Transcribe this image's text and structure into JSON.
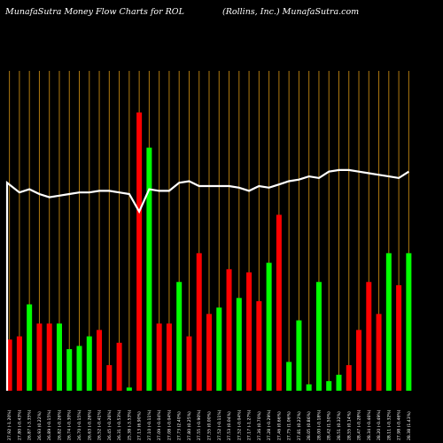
{
  "header": {
    "left_title": "MunafaSutra  Money Flow  Charts for ROL",
    "right_title": "(Rollins,  Inc.) MunafaSutra.com"
  },
  "colors": {
    "background": "#000000",
    "up": "#00ff00",
    "down": "#ff0000",
    "grid": "#b07a10",
    "line": "#ffffff"
  },
  "chart_data": {
    "type": "bar",
    "title": "MunafaSutra  Money Flow  Charts for ROL",
    "subtitle": "(Rollins,  Inc.) MunafaSutra.com",
    "xlabel": "",
    "ylabel": "",
    "ylim": [
      0,
      100
    ],
    "categories": [
      "27.92 (-1.20%)",
      "27.80 (-0.43%)",
      "26.87 (-3.35%)",
      "26.93 (0.22%)",
      "26.89 (-0.15%)",
      "26.82 (-0.26%)",
      "26.74 (-0.30%)",
      "26.70 (-0.15%)",
      "26.63 (-0.26%)",
      "26.52 (-0.41%)",
      "26.45 (-0.26%)",
      "26.31 (-0.53%)",
      "25.38 (-3.53%)",
      "27.13 (6.90%)",
      "27.10 (-0.11%)",
      "27.09 (-0.04%)",
      "27.08 (-0.04%)",
      "27.73 (2.40%)",
      "27.80 (0.25%)",
      "27.55 (-0.90%)",
      "27.55 (0.00%)",
      "27.52 (-0.11%)",
      "27.53 (0.04%)",
      "27.52 (-0.04%)",
      "27.17 (-1.27%)",
      "27.36 (0.70%)",
      "27.28 (-0.29%)",
      "27.46 (0.66%)",
      "27.75 (1.06%)",
      "27.81 (0.22%)",
      "28.05 (0.86%)",
      "28.00 (-0.18%)",
      "28.42 (1.50%)",
      "28.51 (0.32%)",
      "28.55 (0.14%)",
      "28.47 (-0.28%)",
      "28.34 (-0.46%)",
      "28.20 (-0.49%)",
      "28.11 (-0.32%)",
      "27.98 (-0.46%)",
      "28.38 (1.43%)"
    ],
    "values": [
      16,
      17,
      27,
      21,
      21,
      21,
      13,
      14,
      17,
      19,
      8,
      15,
      1,
      87,
      76,
      21,
      21,
      34,
      17,
      43,
      24,
      26,
      38,
      29,
      37,
      28,
      40,
      55,
      9,
      22,
      2,
      34,
      3,
      5,
      8,
      19,
      34,
      24,
      43,
      33,
      43
    ],
    "directions": [
      "down",
      "down",
      "up",
      "down",
      "down",
      "up",
      "up",
      "up",
      "up",
      "down",
      "down",
      "down",
      "up",
      "down",
      "up",
      "down",
      "down",
      "up",
      "down",
      "down",
      "down",
      "up",
      "down",
      "up",
      "down",
      "down",
      "up",
      "down",
      "up",
      "up",
      "up",
      "up",
      "up",
      "up",
      "down",
      "down",
      "down",
      "down",
      "up",
      "down",
      "up"
    ],
    "line_values": [
      65,
      62,
      63,
      61.5,
      60.5,
      61,
      61.5,
      62,
      62,
      62.5,
      62.5,
      62,
      61.5,
      56,
      63,
      62.5,
      62.5,
      65,
      65.5,
      64,
      64,
      64,
      64,
      63.5,
      62.5,
      64,
      63.5,
      64.5,
      65.5,
      66,
      67,
      66.5,
      68.5,
      69,
      69,
      68.5,
      68,
      67.5,
      67,
      66.5,
      68.5
    ],
    "grid": true
  }
}
